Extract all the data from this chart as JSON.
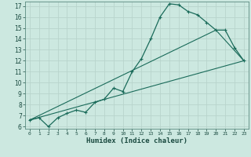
{
  "title": "",
  "xlabel": "Humidex (Indice chaleur)",
  "background_color": "#cce8e0",
  "grid_color": "#b8d4cc",
  "line_color": "#1a6b5a",
  "xlim": [
    -0.5,
    23.5
  ],
  "ylim": [
    5.8,
    17.4
  ],
  "yticks": [
    6,
    7,
    8,
    9,
    10,
    11,
    12,
    13,
    14,
    15,
    16,
    17
  ],
  "xticks": [
    0,
    1,
    2,
    3,
    4,
    5,
    6,
    7,
    8,
    9,
    10,
    11,
    12,
    13,
    14,
    15,
    16,
    17,
    18,
    19,
    20,
    21,
    22,
    23
  ],
  "curve_x": [
    0,
    1,
    2,
    3,
    4,
    5,
    6,
    7,
    8,
    9,
    10,
    11,
    12,
    13,
    14,
    15,
    16,
    17,
    18,
    19,
    20,
    21,
    22,
    23
  ],
  "curve_y": [
    6.6,
    6.8,
    6.0,
    6.8,
    7.2,
    7.5,
    7.3,
    8.2,
    8.5,
    9.5,
    9.2,
    11.0,
    12.2,
    14.0,
    16.0,
    17.2,
    17.1,
    16.5,
    16.2,
    15.5,
    14.8,
    14.8,
    13.2,
    12.0
  ],
  "line1_x": [
    0,
    23
  ],
  "line1_y": [
    6.6,
    12.0
  ],
  "line2_x": [
    0,
    20,
    23
  ],
  "line2_y": [
    6.6,
    14.8,
    12.0
  ]
}
